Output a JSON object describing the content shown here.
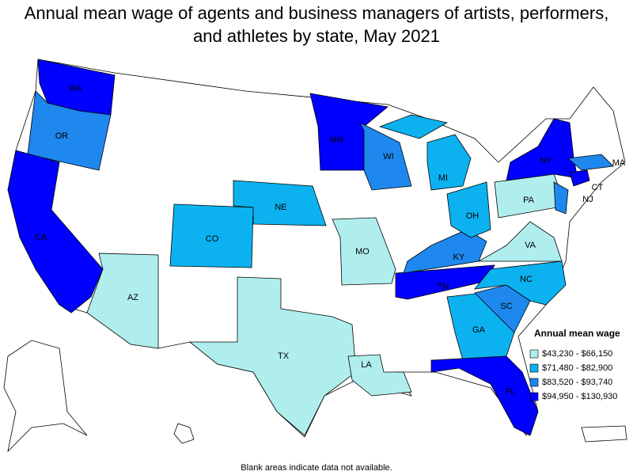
{
  "title": "Annual mean wage of agents and business managers of artists, performers, and athletes by state, May 2021",
  "legend": {
    "title": "Annual mean wage",
    "items": [
      {
        "label": "$43,230 - $66,150",
        "color": "#b0eeee"
      },
      {
        "label": "$71,480 - $82,900",
        "color": "#0cb2f0"
      },
      {
        "label": "$83,520 - $93,740",
        "color": "#1e88ee"
      },
      {
        "label": "$94,950 - $130,930",
        "color": "#0000ff"
      }
    ]
  },
  "states": [
    {
      "label": "WA",
      "level": 3
    },
    {
      "label": "OR",
      "level": 2
    },
    {
      "label": "CA",
      "level": 3
    },
    {
      "label": "AZ",
      "level": 0
    },
    {
      "label": "CO",
      "level": 1
    },
    {
      "label": "NE",
      "level": 1
    },
    {
      "label": "TX",
      "level": 0
    },
    {
      "label": "MN",
      "level": 3
    },
    {
      "label": "WI",
      "level": 2
    },
    {
      "label": "MI",
      "level": 1
    },
    {
      "label": "MO",
      "level": 0
    },
    {
      "label": "LA",
      "level": 0
    },
    {
      "label": "TN",
      "level": 3
    },
    {
      "label": "KY",
      "level": 2
    },
    {
      "label": "OH",
      "level": 1
    },
    {
      "label": "GA",
      "level": 1
    },
    {
      "label": "SC",
      "level": 2
    },
    {
      "label": "NC",
      "level": 1
    },
    {
      "label": "VA",
      "level": 0
    },
    {
      "label": "PA",
      "level": 0
    },
    {
      "label": "NY",
      "level": 3
    },
    {
      "label": "MA",
      "level": 2
    },
    {
      "label": "CT",
      "level": 3
    },
    {
      "label": "NJ",
      "level": 2
    },
    {
      "label": "FL",
      "level": 3
    }
  ],
  "footnote": "Blank areas indicate data not available."
}
